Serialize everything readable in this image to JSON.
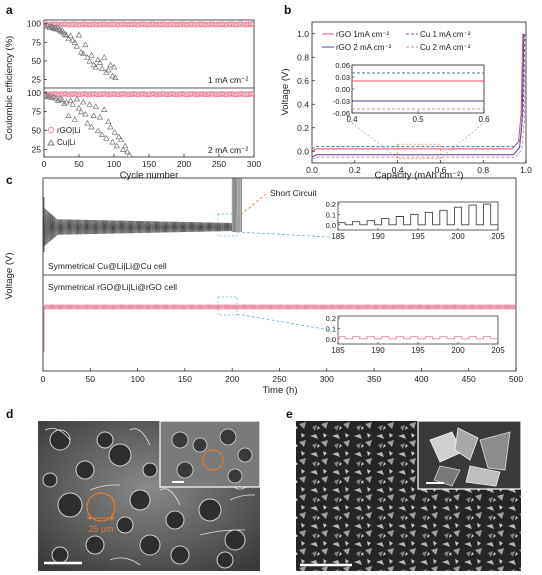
{
  "panels": {
    "a": "a",
    "b": "b",
    "c": "c",
    "d": "d",
    "e": "e"
  },
  "chart_data": [
    {
      "panel": "a",
      "type": "scatter",
      "xlabel": "Cycle number",
      "ylabel": "Coulombic efficiency (%)",
      "xlim": [
        0,
        300
      ],
      "xticks": [
        "0",
        "50",
        "100",
        "150",
        "200",
        "250",
        "300"
      ],
      "subplots": [
        {
          "annotation": "1 mA cm⁻²",
          "ylim": [
            15,
            105
          ],
          "yticks": [
            "100",
            "75",
            "50",
            "25"
          ],
          "series": [
            {
              "name": "rGO|Li",
              "marker": "circle",
              "color": "#e8829a",
              "x_range": [
                1,
                300
              ],
              "y_level": 99
            },
            {
              "name": "Cu|Li",
              "marker": "triangle",
              "color": "#777777",
              "x": [
                2,
                5,
                8,
                10,
                12,
                14,
                16,
                18,
                20,
                22,
                24,
                26,
                28,
                30,
                32,
                35,
                38,
                41,
                44,
                47,
                50,
                53,
                56,
                59,
                62,
                65,
                68,
                71,
                74,
                77,
                80,
                83,
                86,
                89,
                92,
                95,
                98,
                100,
                102
              ],
              "y": [
                97,
                98,
                95,
                97,
                96,
                94,
                95,
                93,
                96,
                92,
                90,
                91,
                88,
                86,
                85,
                80,
                84,
                78,
                75,
                70,
                85,
                62,
                60,
                72,
                55,
                50,
                58,
                45,
                42,
                52,
                48,
                40,
                55,
                35,
                38,
                45,
                30,
                42,
                28
              ]
            }
          ]
        },
        {
          "annotation": "2 mA cm⁻²",
          "ylim": [
            15,
            105
          ],
          "yticks": [
            "100",
            "75",
            "50",
            "25"
          ],
          "series": [
            {
              "name": "rGO|Li",
              "marker": "circle",
              "color": "#e8829a",
              "x_range": [
                1,
                300
              ],
              "y_level": 98
            },
            {
              "name": "Cu|Li",
              "marker": "triangle",
              "color": "#777777",
              "x": [
                2,
                5,
                8,
                11,
                14,
                17,
                20,
                23,
                26,
                29,
                32,
                35,
                38,
                41,
                44,
                47,
                50,
                53,
                56,
                59,
                62,
                65,
                68,
                71,
                74,
                77,
                80,
                83,
                86,
                89,
                92,
                95,
                98,
                101,
                104,
                107,
                110,
                113,
                116,
                119,
                122
              ],
              "y": [
                97,
                95,
                96,
                94,
                95,
                93,
                90,
                92,
                91,
                86,
                88,
                70,
                90,
                85,
                65,
                92,
                80,
                75,
                88,
                72,
                60,
                85,
                55,
                70,
                82,
                50,
                68,
                45,
                78,
                40,
                62,
                55,
                35,
                48,
                30,
                42,
                38,
                25,
                30,
                22,
                18
              ]
            }
          ]
        }
      ]
    },
    {
      "panel": "b",
      "type": "line",
      "xlabel": "Capacity (mAh cm⁻²)",
      "ylabel": "Voltage (V)",
      "xlim": [
        0.0,
        1.0
      ],
      "ylim": [
        -0.1,
        1.1
      ],
      "xticks": [
        "0.0",
        "0.2",
        "0.4",
        "0.6",
        "0.8",
        "1.0"
      ],
      "yticks": [
        "0.0",
        "0.2",
        "0.4",
        "0.6",
        "0.8",
        "1.0"
      ],
      "series": [
        {
          "name": "rGO 1mA cm⁻²",
          "color": "#e0506a",
          "dash": "solid",
          "plateau": 0.02,
          "end_x": 0.985
        },
        {
          "name": "rGO 2 mA cm⁻²",
          "color": "#5a3a9a",
          "dash": "solid",
          "plateau": -0.03,
          "end_x": 0.99
        },
        {
          "name": "Cu 1 mA cm⁻²",
          "color": "#4a6fb0",
          "dash": "dashed",
          "plateau": 0.04,
          "end_x": 0.995
        },
        {
          "name": "Cu 2 mA cm⁻²",
          "color": "#c890b0",
          "dash": "dashed",
          "plateau": -0.05,
          "end_x": 1.0
        }
      ],
      "inset": {
        "xlim": [
          0.4,
          0.6
        ],
        "ylim": [
          -0.06,
          0.06
        ],
        "xticks": [
          "0.4",
          "0.5",
          "0.6"
        ],
        "yticks": [
          "0.06",
          "0.03",
          "0.00",
          "-0.03",
          "-0.06"
        ]
      }
    },
    {
      "panel": "c",
      "type": "line",
      "xlabel": "Time (h)",
      "ylabel": "Voltage (V)",
      "xlim": [
        0,
        500
      ],
      "xticks": [
        "0",
        "50",
        "100",
        "150",
        "200",
        "250",
        "300",
        "350",
        "400",
        "450",
        "500"
      ],
      "subplots": [
        {
          "label": "Symmetrical  Cu@Li|Li@Cu cell",
          "color": "#444444",
          "amplitude_mV": 60,
          "short_time_h": 200,
          "end_time_h": 210,
          "inset": {
            "xlim": [
              185,
              205
            ],
            "ylim": [
              -0.05,
              0.22
            ],
            "xticks": [
              "185",
              "190",
              "195",
              "200",
              "205"
            ],
            "yticks": [
              "0.2",
              "0.1",
              "0.0"
            ],
            "levels": [
              0.02,
              0.03,
              0.04,
              0.06,
              0.08,
              0.1,
              0.12,
              0.14,
              0.17,
              0.19,
              0.2
            ]
          }
        },
        {
          "label": "Symmetrical rGO@Li|Li@rGO cell",
          "color": "#e8829a",
          "amplitude_mV": 20,
          "end_time_h": 500,
          "inset": {
            "xlim": [
              185,
              205
            ],
            "ylim": [
              -0.05,
              0.22
            ],
            "xticks": [
              "185",
              "190",
              "195",
              "200",
              "205"
            ],
            "yticks": [
              "0.2",
              "0.1",
              "0.0"
            ],
            "levels": [
              0.02,
              0.02,
              0.02,
              0.02,
              0.02,
              0.02,
              0.02,
              0.02,
              0.02,
              0.02,
              0.02
            ]
          }
        }
      ],
      "annotation": "Short Circuit"
    }
  ],
  "images": {
    "d": {
      "scale_text": "25 μm"
    },
    "e": {}
  }
}
